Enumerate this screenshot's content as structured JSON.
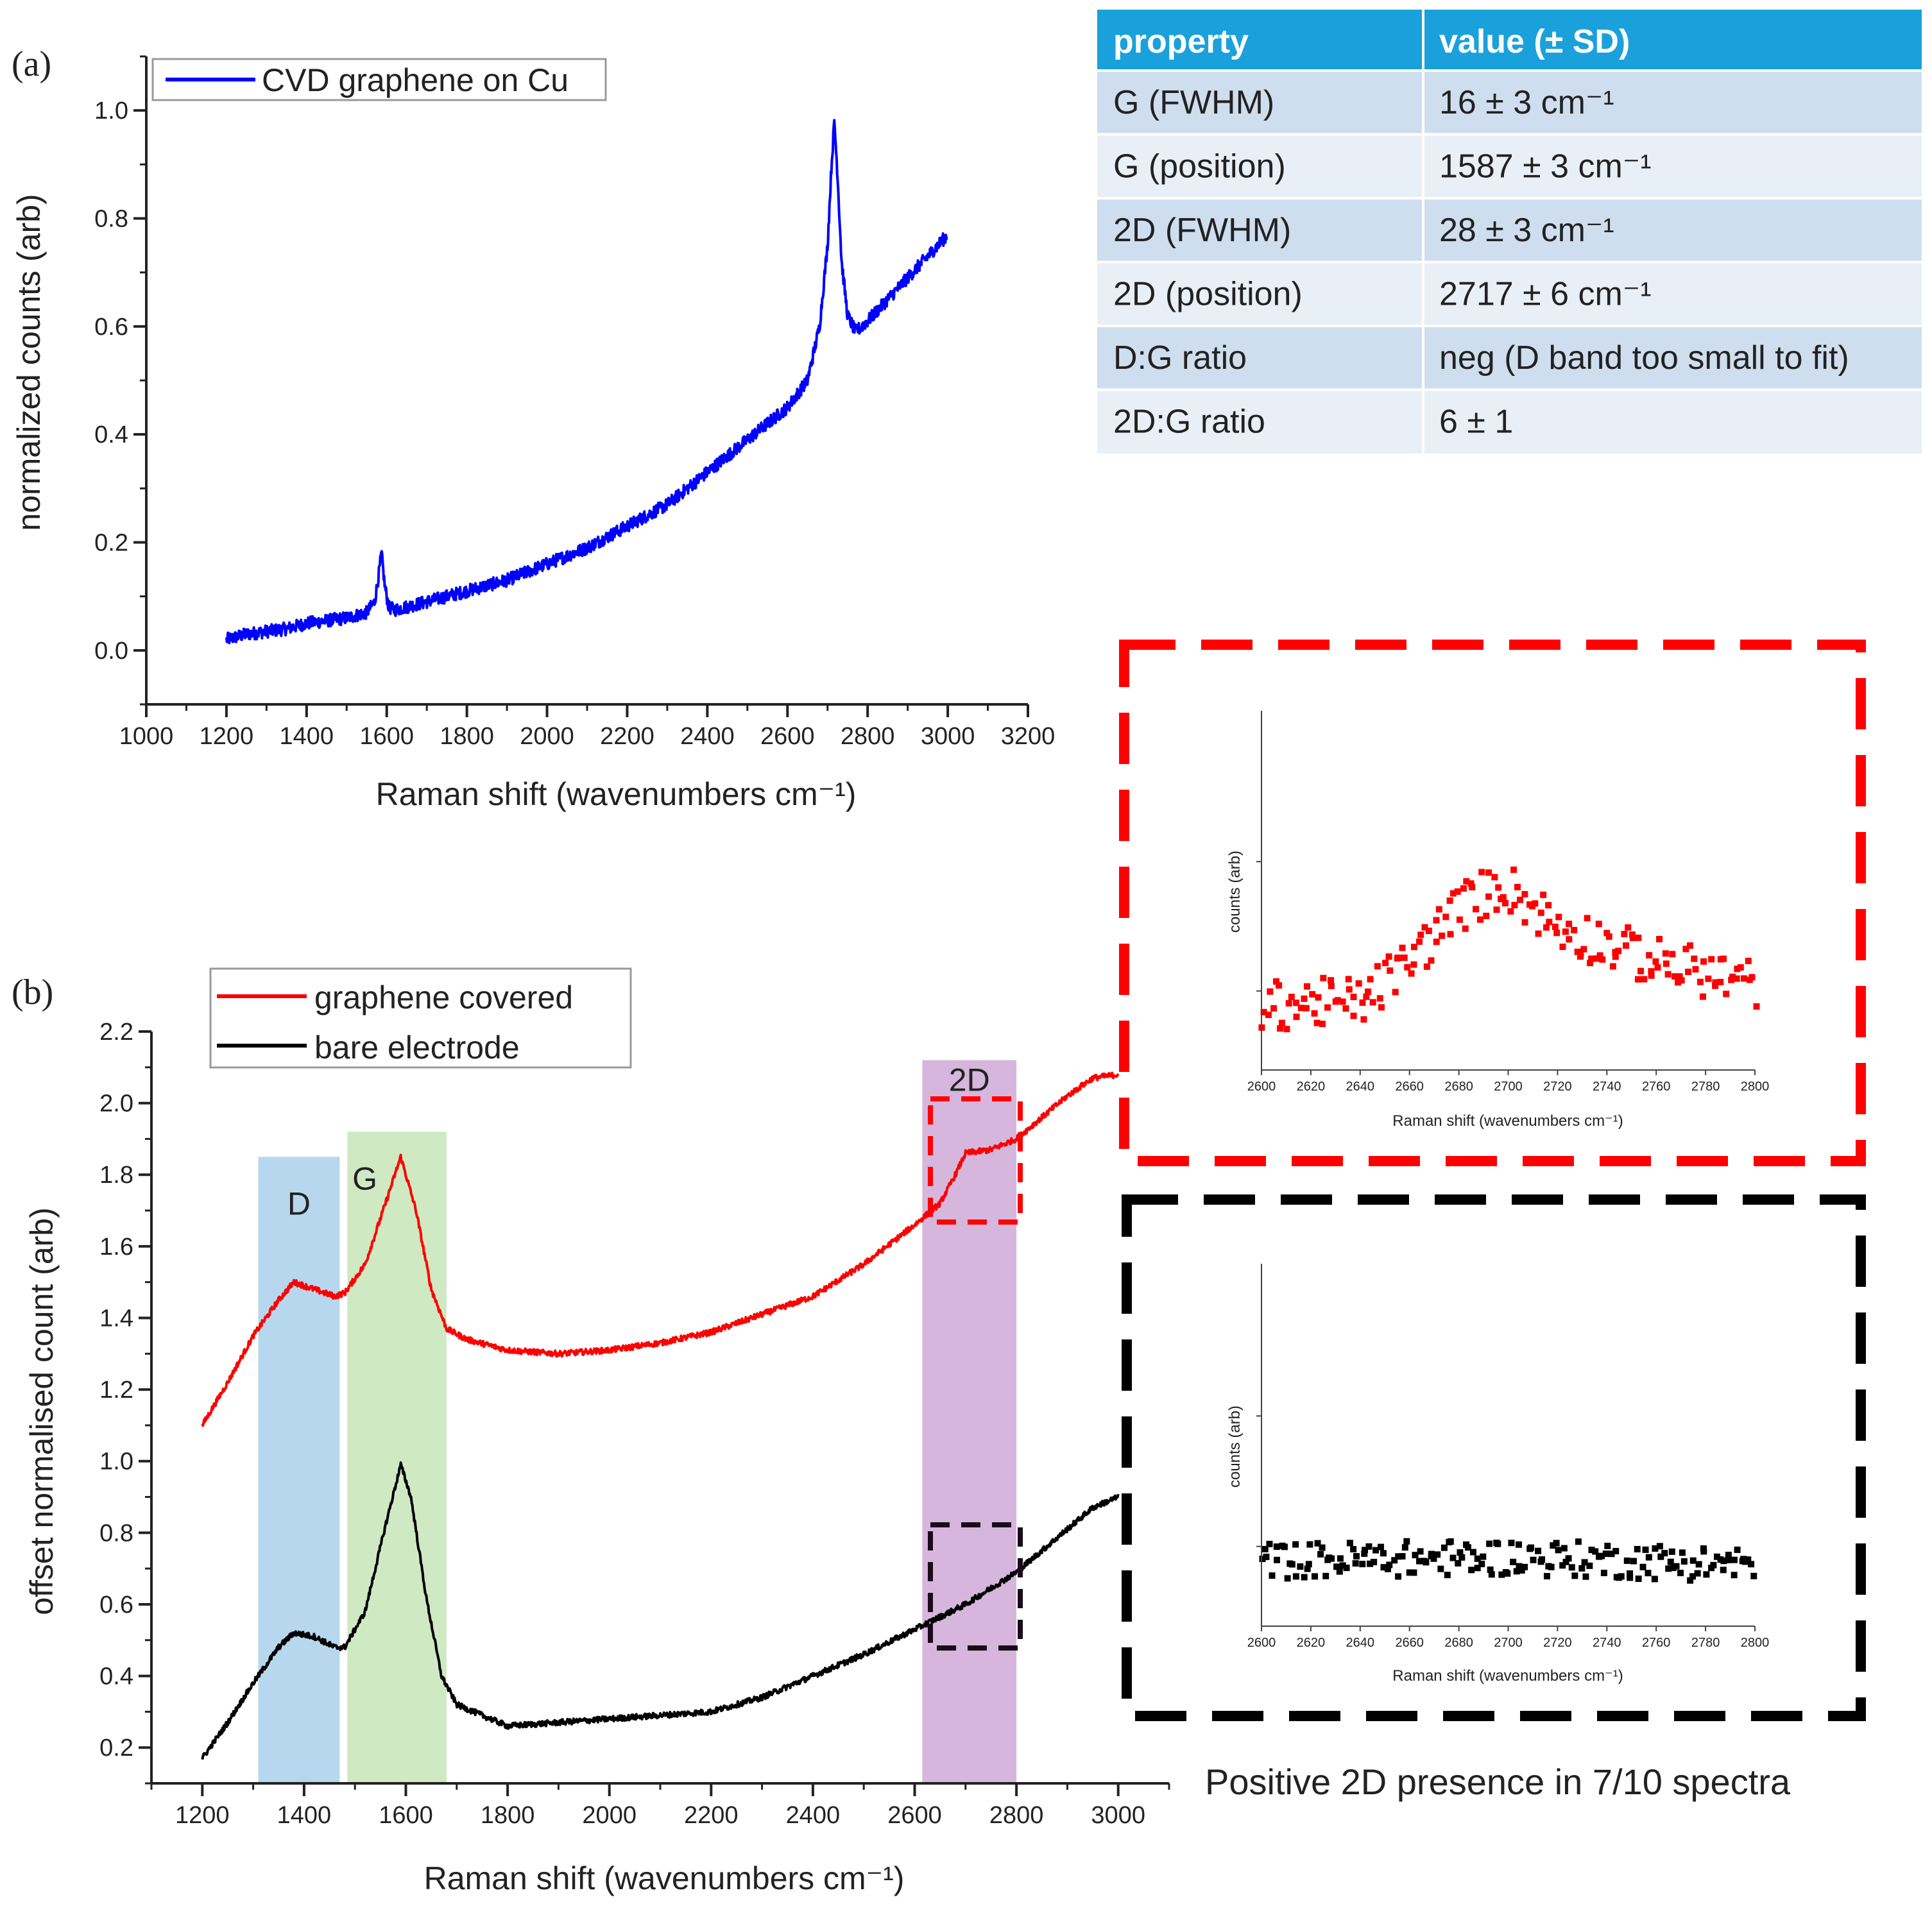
{
  "panel_labels": {
    "a": "(a)",
    "b": "(b)"
  },
  "table": {
    "header": [
      "property",
      "value (± SD)"
    ],
    "rows": [
      [
        "G (FWHM)",
        "16 ± 3 cm⁻¹"
      ],
      [
        "G (position)",
        "1587 ± 3 cm⁻¹"
      ],
      [
        "2D (FWHM)",
        "28 ± 3 cm⁻¹"
      ],
      [
        "2D (position)",
        "2717 ± 6 cm⁻¹"
      ],
      [
        "D:G ratio",
        "neg (D band too small to fit)"
      ],
      [
        "2D:G ratio",
        "6 ± 1"
      ]
    ]
  },
  "caption": "Positive 2D presence in 7/10 spectra",
  "colors": {
    "blue": "#0000ff",
    "red": "#ff0000",
    "black": "#000000",
    "table_header": "#1aa1dc",
    "row_dark": "#cfdeef",
    "row_light": "#e9eff7",
    "band_d": "#b7d7ee",
    "band_g": "#cfe9c2",
    "band_2d": "#d6b6dd"
  },
  "chart_data": [
    {
      "id": "a",
      "type": "line",
      "xlabel": "Raman shift (wavenumbers cm⁻¹)",
      "ylabel": "normalized counts (arb)",
      "xlim": [
        1000,
        3200
      ],
      "ylim": [
        -0.1,
        1.1
      ],
      "xticks": [
        1000,
        1200,
        1400,
        1600,
        1800,
        2000,
        2200,
        2400,
        2600,
        2800,
        3000,
        3200
      ],
      "yticks": [
        0.0,
        0.2,
        0.4,
        0.6,
        0.8,
        1.0
      ],
      "legend": [
        "CVD graphene on Cu"
      ],
      "series": [
        {
          "name": "CVD graphene on Cu",
          "color": "#0000ff",
          "noise": 0.012,
          "x": [
            1200,
            1250,
            1300,
            1350,
            1400,
            1450,
            1500,
            1550,
            1570,
            1580,
            1587,
            1595,
            1605,
            1620,
            1700,
            1800,
            1900,
            2000,
            2100,
            2200,
            2300,
            2400,
            2500,
            2600,
            2650,
            2680,
            2700,
            2710,
            2717,
            2725,
            2735,
            2750,
            2770,
            2800,
            2850,
            2900,
            2950,
            3000
          ],
          "y": [
            0.02,
            0.03,
            0.035,
            0.04,
            0.05,
            0.055,
            0.06,
            0.07,
            0.09,
            0.14,
            0.18,
            0.12,
            0.08,
            0.075,
            0.09,
            0.11,
            0.13,
            0.16,
            0.19,
            0.23,
            0.27,
            0.33,
            0.39,
            0.45,
            0.5,
            0.6,
            0.75,
            0.9,
            0.98,
            0.88,
            0.72,
            0.62,
            0.59,
            0.61,
            0.65,
            0.69,
            0.73,
            0.77
          ]
        }
      ]
    },
    {
      "id": "b",
      "type": "line",
      "xlabel": "Raman shift (wavenumbers cm⁻¹)",
      "ylabel": "offset normalised count (arb)",
      "xlim": [
        1100,
        3100
      ],
      "ylim": [
        0.1,
        2.2
      ],
      "xticks": [
        1200,
        1400,
        1600,
        1800,
        2000,
        2200,
        2400,
        2600,
        2800,
        3000
      ],
      "yticks": [
        0.2,
        0.4,
        0.6,
        0.8,
        1.0,
        1.2,
        1.4,
        1.6,
        1.8,
        2.0,
        2.2
      ],
      "legend": [
        "graphene covered",
        "bare electrode"
      ],
      "bands": [
        {
          "label": "D",
          "x0": 1310,
          "x1": 1470,
          "ymax": 1.85
        },
        {
          "label": "G",
          "x0": 1485,
          "x1": 1680,
          "ymax": 1.92
        },
        {
          "label": "2D",
          "x0": 2615,
          "x1": 2800,
          "ymax": 2.12
        }
      ],
      "series": [
        {
          "name": "graphene covered",
          "color": "#ff0000",
          "noise": 0.008,
          "x": [
            1200,
            1250,
            1300,
            1350,
            1380,
            1420,
            1460,
            1480,
            1520,
            1560,
            1590,
            1620,
            1650,
            1680,
            1720,
            1800,
            1900,
            2000,
            2100,
            2200,
            2300,
            2400,
            2500,
            2600,
            2650,
            2680,
            2700,
            2750,
            2800,
            2850,
            2900,
            2950,
            3000
          ],
          "y": [
            1.1,
            1.22,
            1.35,
            1.45,
            1.5,
            1.48,
            1.46,
            1.47,
            1.55,
            1.72,
            1.85,
            1.7,
            1.48,
            1.37,
            1.34,
            1.31,
            1.3,
            1.31,
            1.33,
            1.36,
            1.41,
            1.46,
            1.55,
            1.66,
            1.72,
            1.8,
            1.86,
            1.87,
            1.9,
            1.96,
            2.02,
            2.07,
            2.08
          ]
        },
        {
          "name": "bare electrode",
          "color": "#000000",
          "noise": 0.008,
          "x": [
            1200,
            1250,
            1300,
            1350,
            1380,
            1420,
            1460,
            1480,
            1520,
            1560,
            1590,
            1610,
            1640,
            1670,
            1700,
            1750,
            1800,
            1900,
            2000,
            2100,
            2200,
            2300,
            2400,
            2500,
            2600,
            2700,
            2800,
            2850,
            2900,
            2950,
            3000
          ],
          "y": [
            0.17,
            0.27,
            0.38,
            0.48,
            0.52,
            0.51,
            0.48,
            0.48,
            0.58,
            0.82,
            0.99,
            0.9,
            0.62,
            0.4,
            0.32,
            0.29,
            0.26,
            0.27,
            0.28,
            0.29,
            0.3,
            0.34,
            0.4,
            0.46,
            0.53,
            0.6,
            0.69,
            0.75,
            0.81,
            0.87,
            0.9
          ]
        }
      ]
    },
    {
      "id": "inset-red",
      "type": "scatter",
      "xlabel": "Raman shift (wavenumbers cm⁻¹)",
      "ylabel": "counts (arb)",
      "xlim": [
        2600,
        2800
      ],
      "ylim": [
        0,
        1
      ],
      "xticks": [
        2600,
        2620,
        2640,
        2660,
        2680,
        2700,
        2720,
        2740,
        2760,
        2780,
        2800
      ],
      "color": "#ff0000",
      "profile": {
        "x": [
          2600,
          2640,
          2660,
          2680,
          2698,
          2720,
          2760,
          2800
        ],
        "y": [
          0.18,
          0.19,
          0.3,
          0.45,
          0.52,
          0.4,
          0.3,
          0.24
        ]
      },
      "spread": 0.07,
      "count": 180
    },
    {
      "id": "inset-black",
      "type": "scatter",
      "xlabel": "Raman shift (wavenumbers cm⁻¹)",
      "ylabel": "counts (arb)",
      "xlim": [
        2600,
        2800
      ],
      "ylim": [
        0,
        1
      ],
      "xticks": [
        2600,
        2620,
        2640,
        2660,
        2680,
        2700,
        2720,
        2740,
        2760,
        2780,
        2800
      ],
      "color": "#000000",
      "profile": {
        "x": [
          2600,
          2700,
          2800
        ],
        "y": [
          0.18,
          0.19,
          0.17
        ]
      },
      "spread": 0.05,
      "count": 180
    }
  ]
}
